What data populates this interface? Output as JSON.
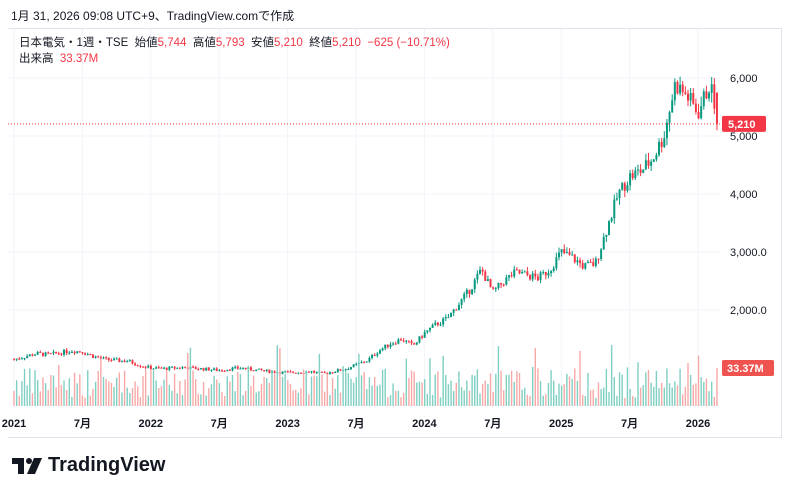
{
  "caption": "1月 31, 2026 09:08 UTC+9、TradingView.comで作成",
  "legend": {
    "symbol": "日本電気・1週・TSE",
    "open_label": "始値",
    "open": "5,744",
    "high_label": "高値",
    "high": "5,793",
    "low_label": "安値",
    "low": "5,210",
    "close_label": "終値",
    "close": "5,210",
    "change": "−625 (−10.71%)",
    "volume_label": "出来高",
    "volume": "33.37M"
  },
  "colors": {
    "up": "#089981",
    "down": "#f23645",
    "vol_up": "#7fcfc3",
    "vol_down": "#f7a9a7"
  },
  "brand": "TradingView",
  "chart_data": {
    "type": "candlestick",
    "interval": "1W",
    "y_ticks": [
      "6,000",
      "5,000",
      "4,000",
      "3,000.0",
      "2,000.0"
    ],
    "y_tick_values": [
      6000,
      5000,
      4000,
      3000,
      2000
    ],
    "x_ticks": [
      "2021",
      "7月",
      "2022",
      "7月",
      "2023",
      "7月",
      "2024",
      "7月",
      "2025",
      "7月",
      "2026"
    ],
    "x_tick_months": [
      0,
      6,
      12,
      18,
      24,
      30,
      36,
      42,
      48,
      54,
      60
    ],
    "last_price": 5210,
    "last_price_label": "5,210",
    "last_volume": 33.37,
    "last_volume_label": "33.37M",
    "monthly_close_from_2021_01": [
      1150,
      1200,
      1250,
      1230,
      1260,
      1300,
      1280,
      1200,
      1150,
      1130,
      1120,
      1050,
      1000,
      990,
      1000,
      1010,
      990,
      980,
      960,
      990,
      1000,
      970,
      950,
      930,
      920,
      930,
      940,
      900,
      940,
      980,
      1050,
      1130,
      1300,
      1420,
      1500,
      1380,
      1600,
      1750,
      1850,
      2100,
      2350,
      2700,
      2300,
      2500,
      2650,
      2600,
      2550,
      2700,
      3000,
      2900,
      2750,
      2800,
      3400,
      4000,
      4300,
      4400,
      4600,
      5000,
      5900,
      5700,
      5400,
      5880,
      5210
    ]
  }
}
